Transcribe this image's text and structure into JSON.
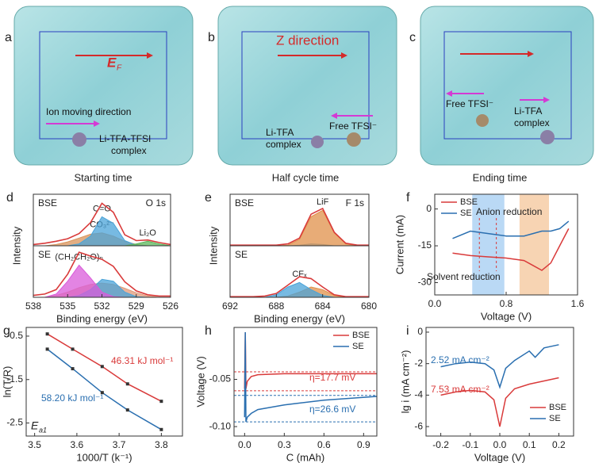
{
  "images": [
    {
      "label": "a",
      "caption": "Starting time",
      "field_symbol": "E",
      "field_subscript": "F",
      "texts": [
        "Ion moving direction",
        "Li-TFA-TFSI",
        "complex"
      ]
    },
    {
      "label": "b",
      "caption": "Half cycle time",
      "texts": [
        "Z direction",
        "Li-TFA",
        "complex",
        "Free TFSI⁻"
      ]
    },
    {
      "label": "c",
      "caption": "Ending time",
      "texts": [
        "Free TFSI⁻",
        "Li-TFA",
        "complex"
      ]
    }
  ],
  "chart_data": [
    {
      "type": "area",
      "label": "d",
      "xlabel": "Binding energy (eV)",
      "ylabel": "Intensity",
      "xlim": [
        538,
        526
      ],
      "xticks": [
        538,
        535,
        532,
        529,
        526
      ],
      "x": [
        538,
        537,
        536,
        535,
        534,
        533,
        532,
        531,
        530,
        529,
        528,
        527,
        526
      ],
      "subplots": [
        {
          "name": "BSE",
          "note": "O 1s",
          "ylim": [
            0,
            8
          ],
          "series": [
            {
              "name": "CO₃²⁻",
              "color": "#d9935a",
              "fill": true,
              "values": [
                0,
                0,
                0.2,
                0.6,
                1.2,
                1.8,
                2,
                1.5,
                0.7,
                0.2,
                0,
                0,
                0
              ]
            },
            {
              "name": "C=O",
              "color": "#4aa3d8",
              "fill": true,
              "values": [
                0,
                0,
                0,
                0,
                0.3,
                1.5,
                4.5,
                3.5,
                0.8,
                0.1,
                0,
                0,
                0
              ]
            },
            {
              "name": "Li₂O",
              "color": "#5cb85c",
              "fill": true,
              "values": [
                0,
                0,
                0,
                0,
                0,
                0,
                0,
                0,
                0,
                0.3,
                0.7,
                0.3,
                0
              ]
            },
            {
              "color": "#d93a3a",
              "fill": false,
              "values": [
                0.2,
                0.4,
                0.7,
                1.1,
                1.9,
                3.6,
                6.6,
                5.2,
                1.7,
                0.8,
                0.9,
                0.5,
                0.2
              ]
            }
          ]
        },
        {
          "name": "SE",
          "ylim": [
            0,
            8
          ],
          "series": [
            {
              "color": "#e09a7a",
              "fill": true,
              "values": [
                0,
                0,
                0.3,
                0.8,
                1.5,
                2,
                2.2,
                2,
                1.4,
                0.7,
                0.2,
                0,
                0
              ]
            },
            {
              "color": "#4aa3d8",
              "fill": true,
              "values": [
                0,
                0,
                0,
                0,
                0.3,
                1.2,
                2.8,
                2.5,
                0.8,
                0.1,
                0,
                0,
                0
              ]
            },
            {
              "name": "(CH₂CH₂O)ₙ",
              "color": "#d95bd9",
              "fill": true,
              "values": [
                0,
                0,
                0.5,
                2.5,
                5,
                3,
                0.8,
                0.1,
                0,
                0,
                0,
                0,
                0
              ]
            },
            {
              "color": "#d93a3a",
              "fill": false,
              "values": [
                0.3,
                0.5,
                1.2,
                3.6,
                7,
                6.4,
                5.9,
                4.8,
                2.4,
                1,
                0.4,
                0.2,
                0.2
              ]
            }
          ]
        }
      ]
    },
    {
      "type": "area",
      "label": "e",
      "xlabel": "Binding energy (eV)",
      "ylabel": "Intensity",
      "xlim": [
        692,
        680
      ],
      "xticks": [
        692,
        688,
        684,
        680
      ],
      "x": [
        692,
        691,
        690,
        689,
        688,
        687,
        686,
        685,
        684,
        683,
        682,
        681,
        680
      ],
      "subplots": [
        {
          "name": "BSE",
          "note": "F 1s",
          "ylim": [
            0,
            8
          ],
          "series": [
            {
              "color": "#4aa3d8",
              "fill": true,
              "values": [
                0,
                0,
                0,
                0,
                0,
                0,
                0.1,
                0.3,
                0.2,
                0,
                0,
                0,
                0
              ]
            },
            {
              "name": "LiF",
              "color": "#e0904a",
              "fill": true,
              "values": [
                0,
                0,
                0,
                0,
                0,
                0.1,
                1,
                4.5,
                5.5,
                2,
                0.3,
                0,
                0
              ]
            },
            {
              "color": "#d93a3a",
              "fill": false,
              "values": [
                0.1,
                0.1,
                0.1,
                0.1,
                0.1,
                0.3,
                1.2,
                4.9,
                5.8,
                2.1,
                0.4,
                0.1,
                0.1
              ]
            }
          ]
        },
        {
          "name": "SE",
          "ylim": [
            0,
            8
          ],
          "series": [
            {
              "color": "#e0904a",
              "fill": true,
              "values": [
                0,
                0,
                0,
                0,
                0,
                0.2,
                0.8,
                1.6,
                1.2,
                0.3,
                0,
                0,
                0
              ]
            },
            {
              "name": "CFₓ",
              "color": "#4aa3d8",
              "fill": true,
              "values": [
                0,
                0,
                0,
                0,
                0.4,
                1.6,
                2.3,
                1.2,
                0.3,
                0,
                0,
                0,
                0
              ]
            },
            {
              "color": "#d93a3a",
              "fill": false,
              "values": [
                0.1,
                0.1,
                0.1,
                0.2,
                0.6,
                1.9,
                3.2,
                2.9,
                1.6,
                0.4,
                0.1,
                0.1,
                0.1
              ]
            }
          ]
        }
      ]
    },
    {
      "type": "line",
      "label": "f",
      "xlabel": "Voltage (V)",
      "ylabel": "Current (mA)",
      "xlim": [
        0,
        1.6
      ],
      "xticks": [
        {
          "value": 0,
          "label": "0.0"
        },
        0.8,
        1.6
      ],
      "ylim": [
        -35,
        6
      ],
      "yticks": [
        0,
        -15,
        -30
      ],
      "legend": "upper left",
      "shaded_regions": [
        {
          "range": [
            0.42,
            0.78
          ],
          "color": "#a9cff2"
        },
        {
          "range": [
            0.95,
            1.28
          ],
          "color": "#f5c9a0"
        }
      ],
      "vlines": [
        {
          "value": 0.5,
          "color": "#d93a3a"
        },
        {
          "value": 0.69,
          "color": "#d93a3a"
        }
      ],
      "annotations": [
        "Anion reduction",
        "Solvent reduction"
      ],
      "series": [
        {
          "name": "BSE",
          "color": "#d93a3a",
          "x": [
            0.2,
            0.4,
            0.6,
            0.8,
            1.0,
            1.1,
            1.2,
            1.3,
            1.4,
            1.5
          ],
          "values": [
            -18,
            -19,
            -19.5,
            -20,
            -21,
            -23,
            -25,
            -22,
            -15,
            -8
          ]
        },
        {
          "name": "SE",
          "color": "#2a6fb0",
          "x": [
            0.2,
            0.4,
            0.6,
            0.8,
            1.0,
            1.1,
            1.2,
            1.3,
            1.4,
            1.5
          ],
          "values": [
            -12,
            -9,
            -10,
            -11,
            -11,
            -10,
            -9,
            -9,
            -8,
            -5
          ]
        }
      ]
    },
    {
      "type": "line",
      "label": "g",
      "xlabel": "1000/T (k⁻¹)",
      "ylabel": "ln(T/R)",
      "xlim": [
        3.48,
        3.85
      ],
      "xticks": [
        3.5,
        3.6,
        3.7,
        3.8
      ],
      "ylim": [
        -2.8,
        -0.3
      ],
      "yticks": [
        -0.5,
        -1.5,
        -2.5
      ],
      "markers": true,
      "annotations": [
        "46.31 kJ mol⁻¹",
        "58.20 kJ mol⁻¹"
      ],
      "symbol": "E",
      "symbol_subscript": "a1",
      "series": [
        {
          "name": "BSE",
          "color": "#d93a3a",
          "x": [
            3.53,
            3.59,
            3.66,
            3.72,
            3.8
          ],
          "values": [
            -0.45,
            -0.8,
            -1.2,
            -1.6,
            -2.0
          ]
        },
        {
          "name": "SE",
          "color": "#2a6fb0",
          "x": [
            3.53,
            3.59,
            3.66,
            3.72,
            3.8
          ],
          "values": [
            -0.8,
            -1.25,
            -1.8,
            -2.2,
            -2.65
          ]
        }
      ]
    },
    {
      "type": "line",
      "label": "h",
      "xlabel": "C (mAh)",
      "ylabel": "Voltage (V)",
      "xlim": [
        -0.08,
        1.0
      ],
      "xticks": [
        {
          "value": 0,
          "label": "0.0"
        },
        0.3,
        0.6,
        0.9
      ],
      "ylim": [
        -0.11,
        0.005
      ],
      "yticks": [
        -0.05,
        {
          "value": -0.1,
          "label": "-0.10"
        }
      ],
      "legend": "upper right",
      "reference_lines": [
        {
          "value": -0.042,
          "color": "#d93a3a"
        },
        {
          "value": -0.062,
          "color": "#d93a3a"
        },
        {
          "value": -0.067,
          "color": "#2a6fb0"
        },
        {
          "value": -0.095,
          "color": "#2a6fb0"
        }
      ],
      "annotations": [
        "η=17.7 mV",
        "η=26.6 mV"
      ],
      "series": [
        {
          "name": "BSE",
          "color": "#d93a3a",
          "x": [
            0,
            0.005,
            0.01,
            0.02,
            0.05,
            0.1,
            0.3,
            0.6,
            1.0
          ],
          "values": [
            -0.06,
            0,
            -0.06,
            -0.052,
            -0.047,
            -0.045,
            -0.044,
            -0.044,
            -0.044
          ]
        },
        {
          "name": "SE",
          "color": "#2a6fb0",
          "x": [
            0,
            0.005,
            0.01,
            0.02,
            0.05,
            0.1,
            0.3,
            0.6,
            1.0
          ],
          "values": [
            -0.09,
            0,
            -0.095,
            -0.09,
            -0.086,
            -0.082,
            -0.077,
            -0.072,
            -0.068
          ]
        }
      ]
    },
    {
      "type": "line",
      "label": "i",
      "xlabel": "Voltage (V)",
      "ylabel": "lg i (mA cm⁻²)",
      "xlim": [
        -0.25,
        0.25
      ],
      "xticks": [
        -0.2,
        -0.1,
        {
          "value": 0,
          "label": "0.0"
        },
        0.1,
        0.2
      ],
      "ylim": [
        -6.6,
        0.3
      ],
      "yticks": [
        0,
        -2,
        -4,
        -6
      ],
      "legend": "lower right",
      "annotations": [
        "2.52 mA cm⁻²",
        "7.53 mA cm⁻²"
      ],
      "series": [
        {
          "name": "BSE",
          "color": "#d93a3a",
          "x": [
            -0.2,
            -0.15,
            -0.1,
            -0.05,
            -0.02,
            0,
            0.02,
            0.05,
            0.1,
            0.15,
            0.2
          ],
          "values": [
            -4.0,
            -3.8,
            -3.7,
            -3.8,
            -4.3,
            -6.0,
            -4.2,
            -3.6,
            -3.3,
            -3.1,
            -2.9
          ]
        },
        {
          "name": "SE",
          "color": "#2a6fb0",
          "x": [
            -0.2,
            -0.15,
            -0.1,
            -0.05,
            -0.02,
            0,
            0.02,
            0.05,
            0.1,
            0.12,
            0.15,
            0.2
          ],
          "values": [
            -2.2,
            -2.0,
            -1.9,
            -2.0,
            -2.4,
            -3.5,
            -2.3,
            -1.8,
            -1.2,
            -1.6,
            -1.0,
            -0.8
          ]
        }
      ]
    }
  ]
}
